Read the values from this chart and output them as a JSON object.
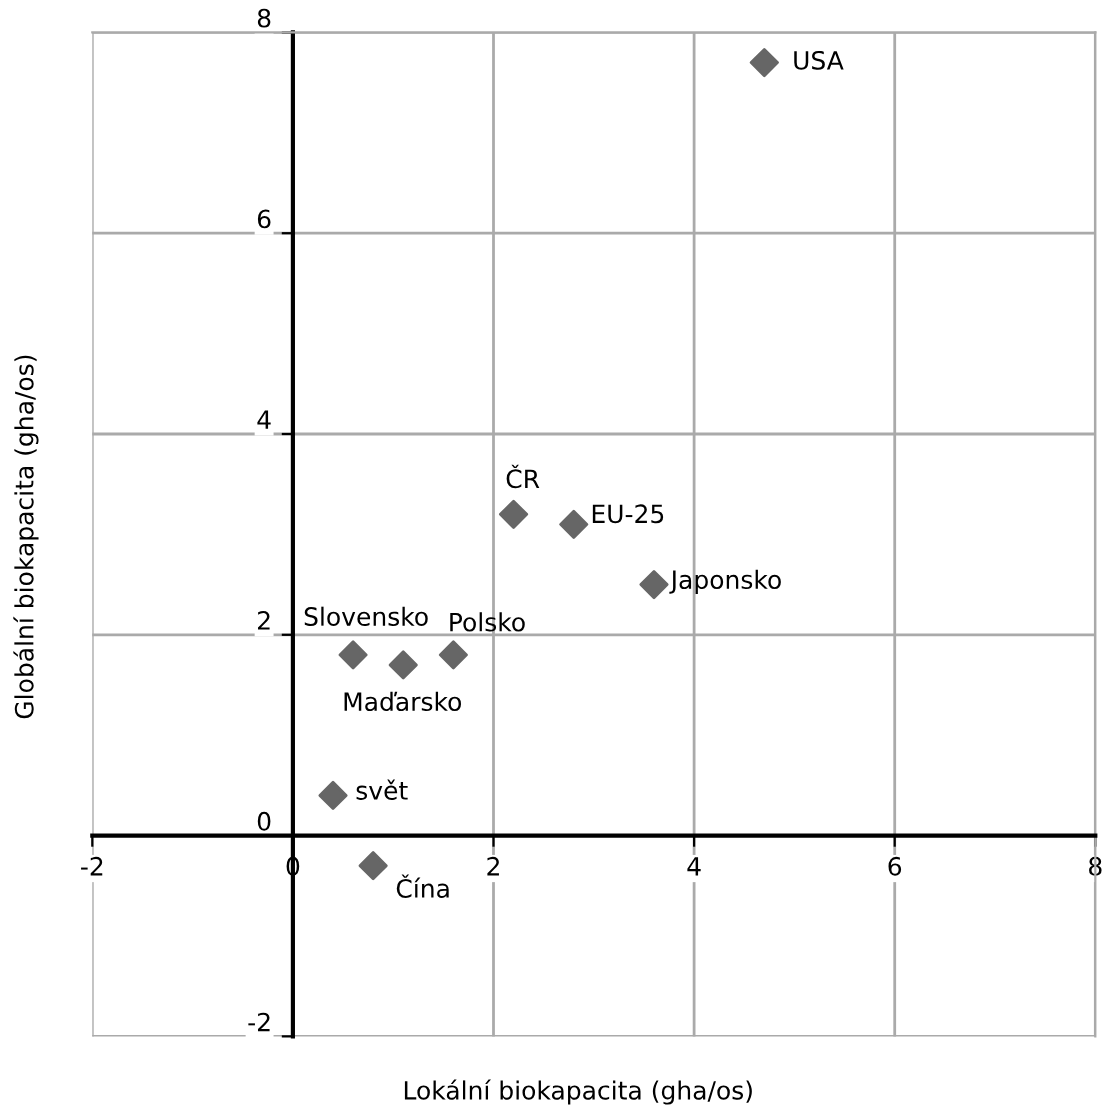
{
  "chart_data": {
    "type": "scatter",
    "xlabel": "Lokální biokapacita (gha/os)",
    "ylabel": "Globální biokapacita (gha/os)",
    "x": [
      4.7,
      2.2,
      2.8,
      3.6,
      1.6,
      1.1,
      0.6,
      0.4,
      0.8
    ],
    "values": [
      7.7,
      3.2,
      3.1,
      2.5,
      1.8,
      1.7,
      1.8,
      0.4,
      -0.3
    ],
    "color": "#666666",
    "marker": "diamond",
    "grid": true,
    "xlim": [
      -2,
      8
    ],
    "ylim": [
      -2,
      8
    ],
    "xticks": [
      -2,
      0,
      2,
      4,
      6,
      8
    ],
    "yticks": [
      -2,
      0,
      2,
      4,
      6,
      8
    ],
    "annotations": [
      {
        "text": "USA",
        "x": 4.7,
        "y": 7.7
      },
      {
        "text": "ČR",
        "x": 2.2,
        "y": 3.2
      },
      {
        "text": "EU-25",
        "x": 2.8,
        "y": 3.1
      },
      {
        "text": "Japonsko",
        "x": 3.6,
        "y": 2.5
      },
      {
        "text": "Polsko",
        "x": 1.6,
        "y": 1.8
      },
      {
        "text": "Maďarsko",
        "x": 1.1,
        "y": 1.7
      },
      {
        "text": "Slovensko",
        "x": 0.6,
        "y": 1.8
      },
      {
        "text": "svět",
        "x": 0.4,
        "y": 0.4
      },
      {
        "text": "Čína",
        "x": 0.8,
        "y": -0.3
      }
    ]
  }
}
